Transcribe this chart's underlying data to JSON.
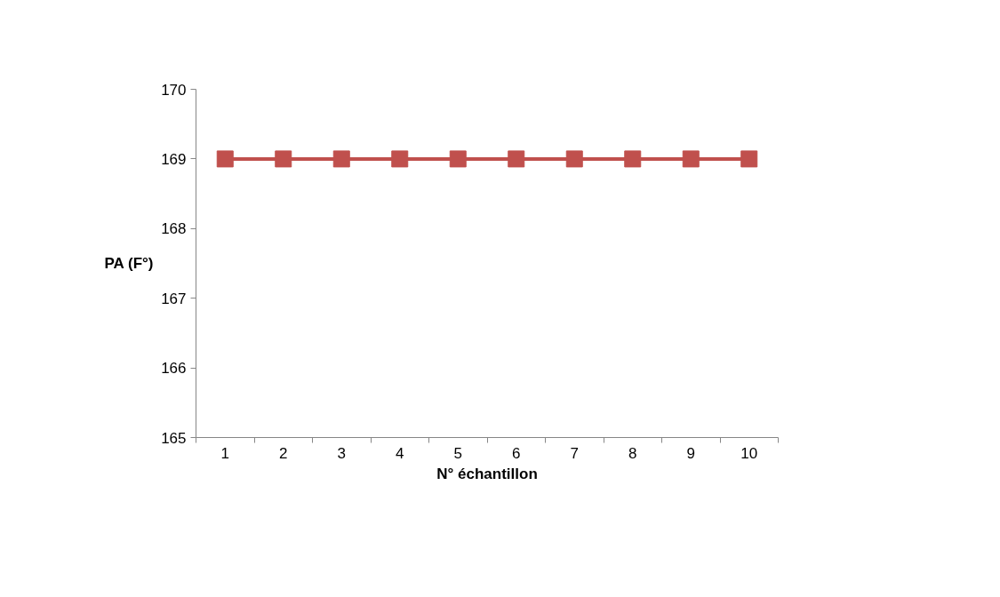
{
  "chart_data": {
    "type": "line",
    "xlabel": "N° échantillon",
    "ylabel": "PA (F°)",
    "categories": [
      "1",
      "2",
      "3",
      "4",
      "5",
      "6",
      "7",
      "8",
      "9",
      "10"
    ],
    "series": [
      {
        "color": "#c0504d",
        "values": [
          169,
          169,
          169,
          169,
          169,
          169,
          169,
          169,
          169,
          169
        ]
      }
    ],
    "ylim": [
      165,
      170
    ],
    "yticks": [
      165,
      166,
      167,
      168,
      169,
      170
    ],
    "marker": "square",
    "line_style": "solid",
    "grid": false
  }
}
